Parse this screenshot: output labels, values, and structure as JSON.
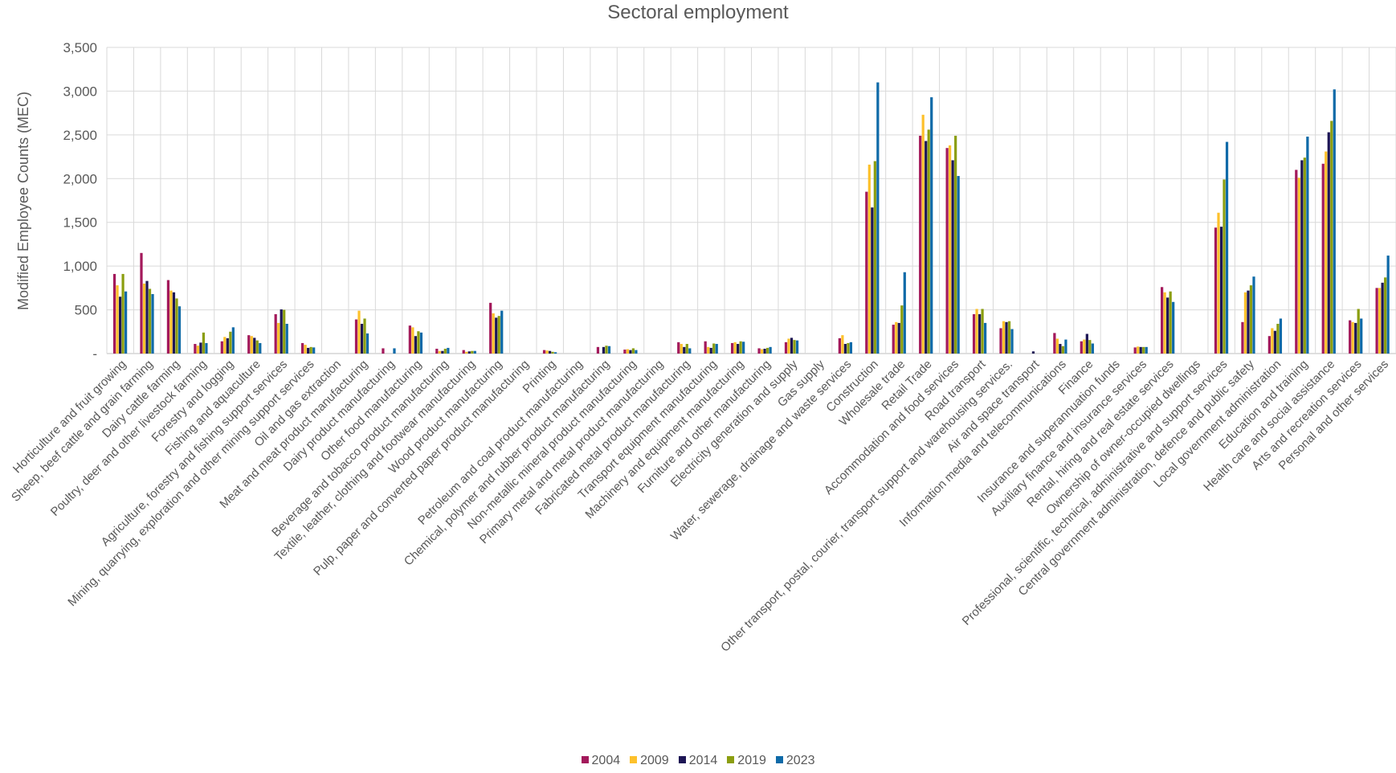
{
  "chart_data": {
    "type": "bar",
    "title": "Sectoral employment",
    "xlabel": "",
    "ylabel": "Modified Employee Counts (MEC)",
    "ylim": [
      0,
      3500
    ],
    "yticks": [
      {
        "value": 0,
        "label": "-"
      },
      {
        "value": 500,
        "label": "500"
      },
      {
        "value": 1000,
        "label": "1,000"
      },
      {
        "value": 1500,
        "label": "1,500"
      },
      {
        "value": 2000,
        "label": "2,000"
      },
      {
        "value": 2500,
        "label": "2,500"
      },
      {
        "value": 3000,
        "label": "3,000"
      },
      {
        "value": 3500,
        "label": "3,500"
      }
    ],
    "grid": true,
    "legend_position": "bottom",
    "categories": [
      "Horticulture and fruit growing",
      "Sheep, beef cattle and grain farming",
      "Dairy cattle farming",
      "Poultry, deer and other livestock farming",
      "Forestry and logging",
      "Fishing and aquaculture",
      "Agriculture, forestry and fishing support services",
      "Mining, quarrying, exploration and other mining support services",
      "Oil and gas extraction",
      "Meat and meat product manufacturing",
      "Dairy product manufacturing",
      "Other food manufacturing",
      "Beverage and tobacco product manufacturing",
      "Textile, leather, clothing and footwear manufacturing",
      "Wood product manufacturing",
      "Pulp, paper and converted paper product manufacturing",
      "Printing",
      "Petroleum and coal product manufacturing",
      "Chemical, polymer and rubber product manufacturing",
      "Non-metallic mineral product manufacturing",
      "Primary metal and metal product manufacturing",
      "Fabricated metal product manufacturing",
      "Transport equipment manufacturing",
      "Machinery and equipment manufacturing",
      "Furniture and other manufacturing",
      "Electricity generation and supply",
      "Gas supply",
      "Water, sewerage, drainage and waste services",
      "Construction",
      "Wholesale trade",
      "Retail Trade",
      "Accommodation and food services",
      "Road transport",
      "Other transport, postal, courier, transport support and warehousing services.",
      "Air and space transport",
      "Information media and telecommunications",
      "Finance",
      "Insurance and superannuation funds",
      "Auxiliary finance and insurance services",
      "Rental, hiring and real estate services",
      "Ownership of owner-occupied dwellings",
      "Professional, scientific, technical, administrative and support services",
      "Central government administration, defence and public safety",
      "Local government administration",
      "Education and training",
      "Health care and social assistance",
      "Arts and recreation services",
      "Personal and other services"
    ],
    "series": [
      {
        "name": "2004",
        "color": "#A3195B",
        "values": [
          910,
          1150,
          840,
          110,
          140,
          210,
          450,
          120,
          0,
          390,
          60,
          320,
          55,
          40,
          580,
          0,
          40,
          0,
          75,
          45,
          0,
          130,
          140,
          120,
          60,
          130,
          0,
          175,
          1850,
          330,
          2490,
          2350,
          450,
          290,
          0,
          235,
          140,
          0,
          70,
          760,
          0,
          1440,
          360,
          200,
          2100,
          2170,
          380,
          750
        ]
      },
      {
        "name": "2009",
        "color": "#FDC12C",
        "values": [
          780,
          800,
          720,
          90,
          190,
          200,
          350,
          100,
          0,
          490,
          0,
          300,
          30,
          20,
          460,
          0,
          35,
          0,
          0,
          50,
          0,
          110,
          75,
          130,
          50,
          170,
          0,
          210,
          2160,
          360,
          2730,
          2380,
          510,
          370,
          0,
          170,
          160,
          0,
          80,
          700,
          0,
          1610,
          700,
          290,
          2010,
          2310,
          360,
          750
        ]
      },
      {
        "name": "2014",
        "color": "#1D1655",
        "values": [
          650,
          830,
          700,
          125,
          175,
          180,
          505,
          65,
          0,
          340,
          0,
          200,
          30,
          25,
          410,
          0,
          30,
          0,
          75,
          40,
          0,
          75,
          65,
          110,
          55,
          180,
          0,
          110,
          1670,
          350,
          2430,
          2210,
          450,
          360,
          25,
          110,
          225,
          0,
          75,
          640,
          0,
          1450,
          720,
          260,
          2210,
          2530,
          350,
          810
        ]
      },
      {
        "name": "2019",
        "color": "#8B9E10",
        "values": [
          910,
          740,
          630,
          240,
          250,
          150,
          500,
          75,
          0,
          400,
          0,
          255,
          55,
          30,
          430,
          0,
          20,
          0,
          90,
          60,
          0,
          110,
          115,
          140,
          65,
          155,
          0,
          120,
          2200,
          550,
          2560,
          2490,
          510,
          370,
          0,
          85,
          155,
          0,
          75,
          710,
          0,
          1990,
          780,
          340,
          2240,
          2660,
          510,
          870
        ]
      },
      {
        "name": "2023",
        "color": "#0E6AA8",
        "values": [
          710,
          680,
          540,
          120,
          300,
          120,
          340,
          70,
          0,
          230,
          60,
          240,
          65,
          30,
          490,
          0,
          15,
          0,
          85,
          40,
          0,
          60,
          110,
          135,
          75,
          150,
          0,
          130,
          3100,
          930,
          2930,
          2030,
          350,
          280,
          0,
          160,
          115,
          0,
          75,
          590,
          0,
          2420,
          880,
          400,
          2480,
          3020,
          400,
          1120
        ]
      }
    ]
  }
}
